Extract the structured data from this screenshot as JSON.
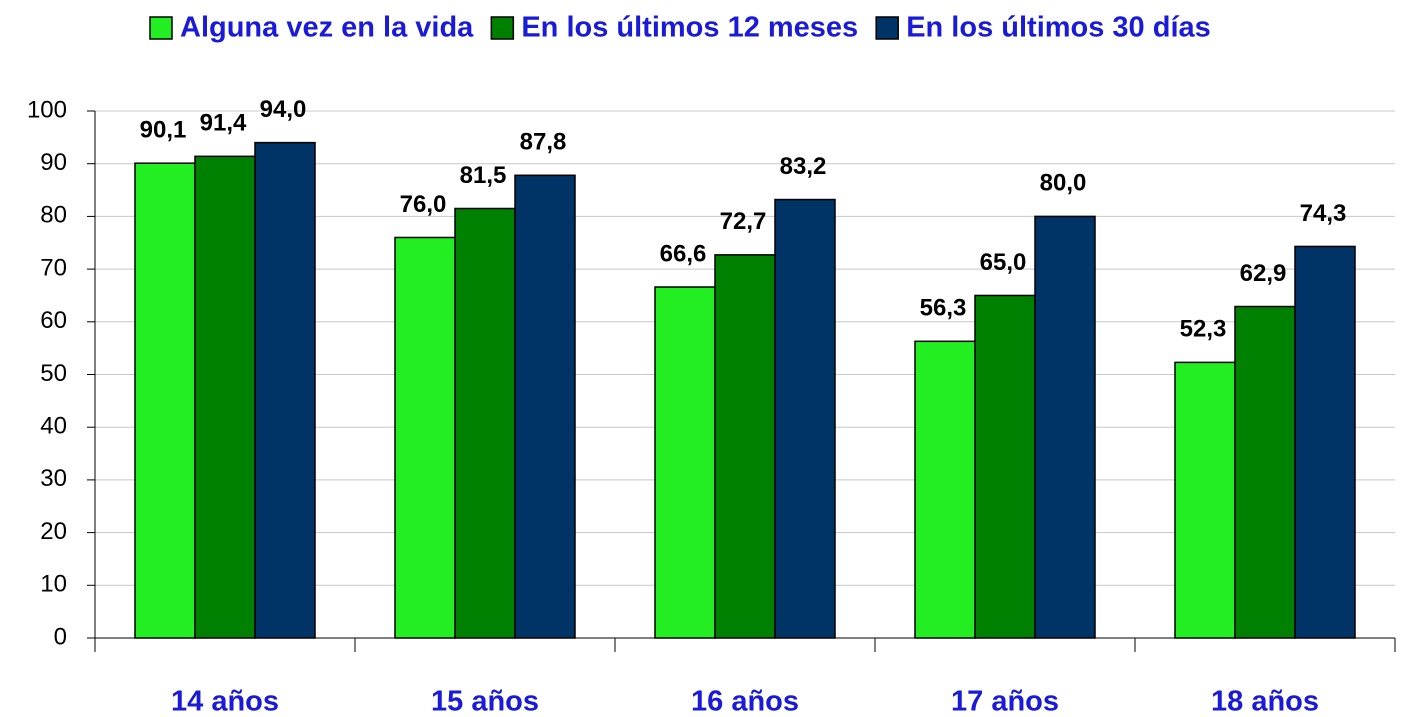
{
  "chart_data": {
    "type": "bar",
    "categories": [
      "14 años",
      "15 años",
      "16 años",
      "17 años",
      "18 años"
    ],
    "series": [
      {
        "name": "Alguna vez en la vida",
        "color": "#22ee22",
        "values": [
          90.1,
          76.0,
          66.6,
          56.3,
          52.3
        ],
        "value_labels": [
          "90,1",
          "76,0",
          "66,6",
          "56,3",
          "52,3"
        ]
      },
      {
        "name": "En los últimos 12 meses",
        "color": "#008000",
        "values": [
          91.4,
          81.5,
          72.7,
          65.0,
          62.9
        ],
        "value_labels": [
          "91,4",
          "81,5",
          "72,7",
          "65,0",
          "62,9"
        ]
      },
      {
        "name": "En los últimos 30 días",
        "color": "#003366",
        "values": [
          94.0,
          87.8,
          83.2,
          80.0,
          74.3
        ],
        "value_labels": [
          "94,0",
          "87,8",
          "83,2",
          "80,0",
          "74,3"
        ]
      }
    ],
    "ylim": [
      0,
      100
    ],
    "yticks": [
      0,
      10,
      20,
      30,
      40,
      50,
      60,
      70,
      80,
      90,
      100
    ],
    "grid": true,
    "legend": "top"
  }
}
